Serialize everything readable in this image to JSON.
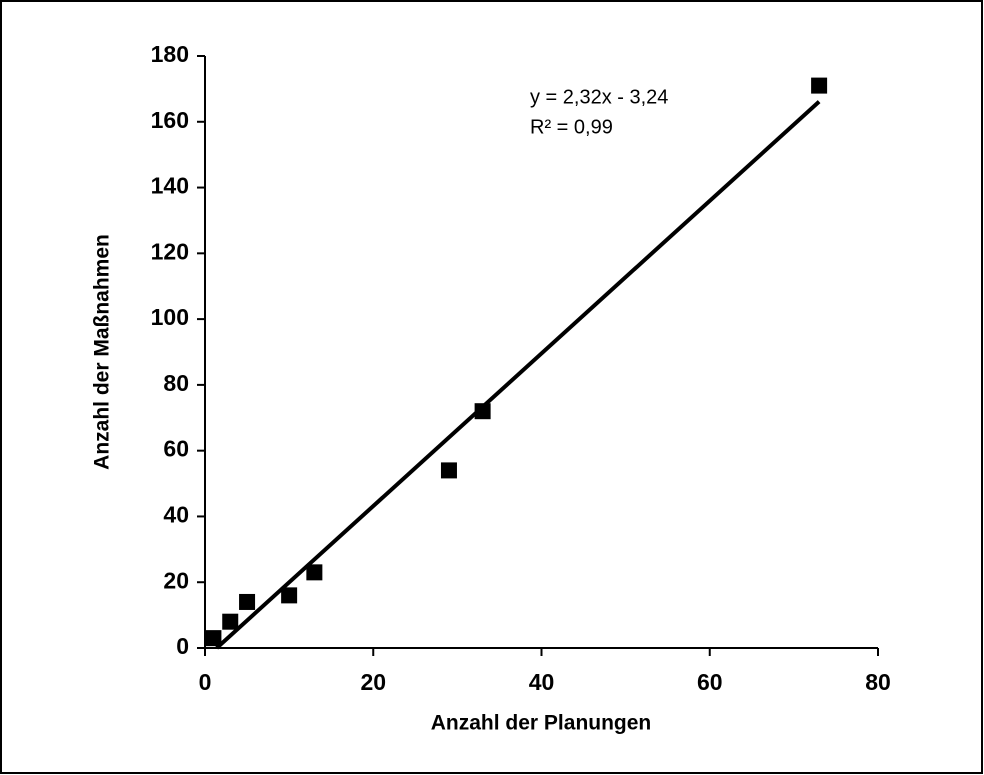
{
  "chart_data": {
    "type": "scatter",
    "x_label": "Anzahl der Planungen",
    "y_label": "Anzahl der Maßnahmen",
    "series": [
      {
        "name": null,
        "color": "#000000",
        "x": [
          1,
          3,
          5,
          10,
          13,
          29,
          33,
          73
        ],
        "values": [
          3,
          8,
          14,
          16,
          23,
          54,
          72,
          171
        ]
      }
    ],
    "trendline": {
      "slope": 2.32,
      "intercept": -3.24,
      "color": "#000000"
    },
    "annotations": [
      "y = 2,32x - 3,24",
      "R² = 0,99"
    ],
    "xlim": [
      0,
      80
    ],
    "xticks": [
      0,
      20,
      40,
      60,
      80
    ],
    "ylim": [
      0,
      180
    ],
    "yticks": [
      0,
      20,
      40,
      60,
      80,
      100,
      120,
      140,
      160,
      180
    ],
    "grid": false
  }
}
